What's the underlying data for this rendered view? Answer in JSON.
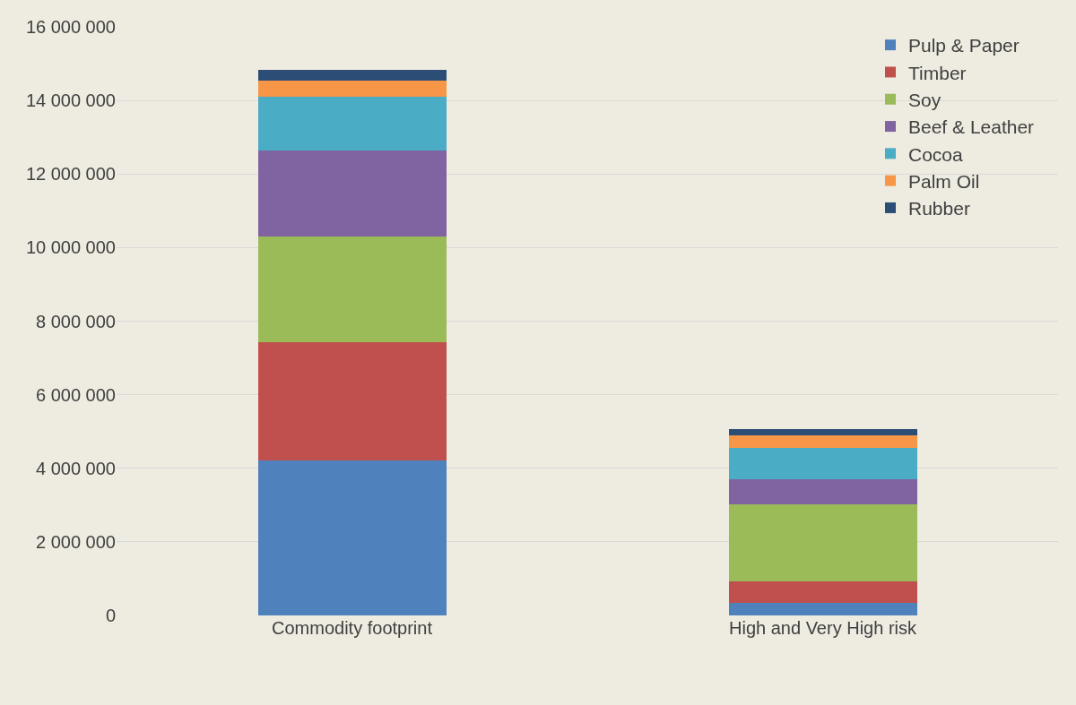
{
  "chart_data": {
    "type": "bar",
    "stacked": true,
    "categories": [
      "Commodity footprint",
      "High and Very High risk"
    ],
    "series": [
      {
        "name": "Pulp & Paper",
        "color": "#4f81bd",
        "values": [
          4220000,
          350000
        ]
      },
      {
        "name": "Timber",
        "color": "#c0504d",
        "values": [
          3210000,
          570000
        ]
      },
      {
        "name": "Soy",
        "color": "#9bbb59",
        "values": [
          2880000,
          2090000
        ]
      },
      {
        "name": "Beef & Leather",
        "color": "#8064a2",
        "values": [
          2330000,
          700000
        ]
      },
      {
        "name": "Cocoa",
        "color": "#4bacc6",
        "values": [
          1470000,
          840000
        ]
      },
      {
        "name": "Palm Oil",
        "color": "#f79646",
        "values": [
          420000,
          350000
        ]
      },
      {
        "name": "Rubber",
        "color": "#2c4d75",
        "values": [
          310000,
          170000
        ]
      }
    ],
    "ylim": [
      0,
      16000000
    ],
    "yticks": [
      {
        "value": 0,
        "label": "0"
      },
      {
        "value": 2000000,
        "label": "2 000 000"
      },
      {
        "value": 4000000,
        "label": "4 000 000"
      },
      {
        "value": 6000000,
        "label": "6 000 000"
      },
      {
        "value": 8000000,
        "label": "8 000 000"
      },
      {
        "value": 10000000,
        "label": "10 000 000"
      },
      {
        "value": 12000000,
        "label": "12 000 000"
      },
      {
        "value": 14000000,
        "label": "14 000 000"
      },
      {
        "value": 16000000,
        "label": "16 000 000"
      }
    ],
    "grid": "y",
    "legend": "top right"
  }
}
